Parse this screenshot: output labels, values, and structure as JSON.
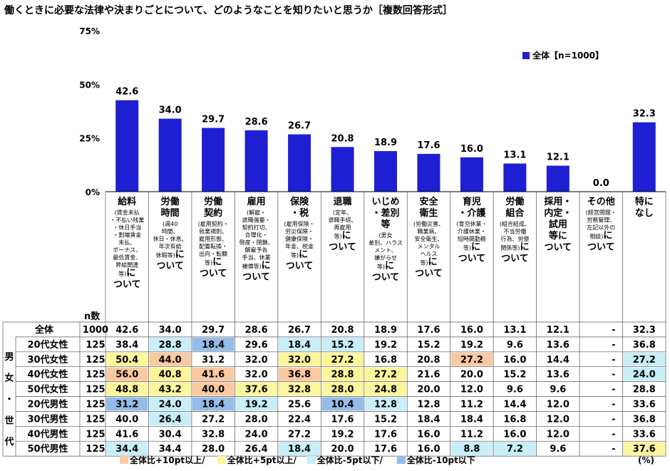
{
  "title": "働くときに必要な法律や決まりごとについて、どのようなことを知りたいと思うか［複数回答形式］",
  "colors": {
    "bar": "#1e1ed2",
    "highPlus10": "#f9c9a1",
    "highPlus5": "#fbf59c",
    "lowMinus5": "#c8eef8",
    "lowMinus10": "#93bce8"
  },
  "chart_data": {
    "type": "bar",
    "ylim": [
      0,
      75
    ],
    "yticks": [
      "0%",
      "25%",
      "50%",
      "75%"
    ],
    "legend": "全体【n=1000】",
    "legend_position": "top-right",
    "series": [
      {
        "name": "全体【n=1000】",
        "values": [
          42.6,
          34.0,
          29.7,
          28.6,
          26.7,
          20.8,
          18.9,
          17.6,
          16.0,
          13.1,
          12.1,
          0.0,
          32.3
        ]
      }
    ],
    "value_labels": [
      "42.6",
      "34.0",
      "29.7",
      "28.6",
      "26.7",
      "20.8",
      "18.9",
      "17.6",
      "16.0",
      "13.1",
      "12.1",
      "0.0",
      "32.3"
    ],
    "categories": [
      {
        "lines": [
          [
            "給料"
          ],
          [
            "(賃金未払",
            "small"
          ],
          [
            "・不払い残業",
            "small"
          ],
          [
            "・休日手当",
            "small"
          ],
          [
            "・割増賃金",
            "small"
          ],
          [
            "未払、",
            "small"
          ],
          [
            "ボーナス、",
            "small"
          ],
          [
            "最低賃金、",
            "small"
          ],
          [
            "昇給関連",
            "small"
          ],
          [
            "等)に",
            "mixed"
          ],
          [
            "ついて"
          ]
        ]
      },
      {
        "lines": [
          [
            "労働"
          ],
          [
            "時間"
          ],
          [
            "(週40",
            "small"
          ],
          [
            "時間、",
            "small"
          ],
          [
            "休日・休息、",
            "small"
          ],
          [
            "年次有給",
            "small"
          ],
          [
            "休暇等)に",
            "mixed"
          ],
          [
            "ついて"
          ]
        ]
      },
      {
        "lines": [
          [
            "労働"
          ],
          [
            "契約"
          ],
          [
            "(雇用契約・",
            "small"
          ],
          [
            "就業規則、",
            "small"
          ],
          [
            "雇用形態、",
            "small"
          ],
          [
            "配置転換・",
            "small"
          ],
          [
            "出向・転籍",
            "small"
          ],
          [
            "等)に",
            "mixed"
          ],
          [
            "ついて"
          ]
        ]
      },
      {
        "lines": [
          [
            "雇用"
          ],
          [
            "(解雇・",
            "small"
          ],
          [
            "退職強要・",
            "small"
          ],
          [
            "契約打切、",
            "small"
          ],
          [
            "合理化・",
            "small"
          ],
          [
            "倒産・閉鎖、",
            "small"
          ],
          [
            "解雇予告",
            "small"
          ],
          [
            "手当、休業",
            "small"
          ],
          [
            "補償等)に",
            "mixed"
          ],
          [
            "ついて"
          ]
        ]
      },
      {
        "lines": [
          [
            "保険"
          ],
          [
            "・税"
          ],
          [
            "(雇用保険・",
            "small"
          ],
          [
            "労災保険・",
            "small"
          ],
          [
            "健康保険・",
            "small"
          ],
          [
            "年金、税金",
            "small"
          ],
          [
            "等)に",
            "mixed"
          ],
          [
            "ついて"
          ]
        ]
      },
      {
        "lines": [
          [
            "退職"
          ],
          [
            "(定年、",
            "small"
          ],
          [
            "退職手続、",
            "small"
          ],
          [
            "再雇用",
            "small"
          ],
          [
            "等)に",
            "mixed"
          ],
          [
            "ついて"
          ]
        ]
      },
      {
        "lines": [
          [
            "いじめ"
          ],
          [
            "・差別"
          ],
          [
            "等"
          ],
          [
            "(男女",
            "small"
          ],
          [
            "差別、ハラス",
            "small"
          ],
          [
            "メント、",
            "small"
          ],
          [
            "嫌がらせ",
            "small"
          ],
          [
            "等)に",
            "mixed"
          ],
          [
            "ついて"
          ]
        ]
      },
      {
        "lines": [
          [
            "安全"
          ],
          [
            "衛生"
          ],
          [
            "(労働災害、",
            "small"
          ],
          [
            "職業病、",
            "small"
          ],
          [
            "安全衛生、",
            "small"
          ],
          [
            "メンタル",
            "small"
          ],
          [
            "ヘルス",
            "small"
          ],
          [
            "等)に",
            "mixed"
          ],
          [
            "ついて"
          ]
        ]
      },
      {
        "lines": [
          [
            "育児"
          ],
          [
            "・介護"
          ],
          [
            "(育児休業・",
            "small"
          ],
          [
            "介護休業・",
            "small"
          ],
          [
            "短時間勤務",
            "small"
          ],
          [
            "等)に",
            "mixed"
          ],
          [
            "ついて"
          ]
        ]
      },
      {
        "lines": [
          [
            "労働"
          ],
          [
            "組合"
          ],
          [
            "(組合結成、",
            "small"
          ],
          [
            "不当労働",
            "small"
          ],
          [
            "行為、労使",
            "small"
          ],
          [
            "関係等)に",
            "mixed"
          ],
          [
            "ついて"
          ]
        ]
      },
      {
        "lines": [
          [
            "採用・"
          ],
          [
            "内定・"
          ],
          [
            "試用"
          ],
          [
            "等に"
          ],
          [
            "ついて"
          ]
        ]
      },
      {
        "lines": [
          [
            "その他"
          ],
          [
            "(経営問題・",
            "small"
          ],
          [
            "労務管理、",
            "small"
          ],
          [
            "左記以外の",
            "small"
          ],
          [
            "相談)に",
            "mixed"
          ],
          [
            "ついて"
          ]
        ]
      },
      {
        "lines": [
          [
            "特に"
          ],
          [
            "なし"
          ]
        ]
      }
    ]
  },
  "table": {
    "n_header": "n数",
    "group_label": "男女・世代",
    "rows": [
      {
        "label": "全体",
        "n": "1000",
        "values": [
          "42.6",
          "34.0",
          "29.7",
          "28.6",
          "26.7",
          "20.8",
          "18.9",
          "17.6",
          "16.0",
          "13.1",
          "12.1",
          "-",
          "32.3"
        ],
        "colors": [
          "",
          "",
          "",
          "",
          "",
          "",
          "",
          "",
          "",
          "",
          "",
          "",
          ""
        ]
      },
      {
        "label": "20代女性",
        "n": "125",
        "values": [
          "38.4",
          "28.8",
          "18.4",
          "29.6",
          "18.4",
          "15.2",
          "19.2",
          "15.2",
          "19.2",
          "9.6",
          "13.6",
          "-",
          "36.8"
        ],
        "colors": [
          "",
          "lowMinus5",
          "lowMinus10",
          "",
          "lowMinus5",
          "lowMinus5",
          "",
          "",
          "",
          "",
          "",
          "",
          ""
        ]
      },
      {
        "label": "30代女性",
        "n": "125",
        "values": [
          "50.4",
          "44.0",
          "31.2",
          "32.0",
          "32.0",
          "27.2",
          "16.8",
          "20.8",
          "27.2",
          "16.0",
          "14.4",
          "-",
          "27.2"
        ],
        "colors": [
          "highPlus5",
          "highPlus10",
          "",
          "",
          "highPlus5",
          "highPlus5",
          "",
          "",
          "highPlus10",
          "",
          "",
          "",
          "lowMinus5"
        ]
      },
      {
        "label": "40代女性",
        "n": "125",
        "values": [
          "56.0",
          "40.8",
          "41.6",
          "32.0",
          "36.8",
          "28.8",
          "27.2",
          "21.6",
          "20.0",
          "15.2",
          "13.6",
          "-",
          "24.0"
        ],
        "colors": [
          "highPlus10",
          "highPlus5",
          "highPlus10",
          "",
          "highPlus10",
          "highPlus5",
          "highPlus5",
          "",
          "",
          "",
          "",
          "",
          "lowMinus5"
        ]
      },
      {
        "label": "50代女性",
        "n": "125",
        "values": [
          "48.8",
          "43.2",
          "40.0",
          "37.6",
          "32.8",
          "28.0",
          "24.8",
          "20.0",
          "12.0",
          "9.6",
          "9.6",
          "-",
          "28.8"
        ],
        "colors": [
          "highPlus5",
          "highPlus5",
          "highPlus10",
          "highPlus5",
          "highPlus5",
          "highPlus5",
          "highPlus5",
          "",
          "",
          "",
          "",
          "",
          ""
        ]
      },
      {
        "label": "20代男性",
        "n": "125",
        "values": [
          "31.2",
          "24.0",
          "18.4",
          "19.2",
          "25.6",
          "10.4",
          "12.8",
          "12.8",
          "11.2",
          "14.4",
          "12.0",
          "-",
          "33.6"
        ],
        "colors": [
          "lowMinus10",
          "lowMinus5",
          "lowMinus10",
          "lowMinus5",
          "",
          "lowMinus10",
          "lowMinus5",
          "",
          "",
          "",
          "",
          "",
          ""
        ]
      },
      {
        "label": "30代男性",
        "n": "125",
        "values": [
          "40.0",
          "26.4",
          "27.2",
          "28.0",
          "22.4",
          "17.6",
          "15.2",
          "18.4",
          "18.4",
          "16.8",
          "12.0",
          "-",
          "36.8"
        ],
        "colors": [
          "",
          "lowMinus5",
          "",
          "",
          "",
          "",
          "",
          "",
          "",
          "",
          "",
          "",
          ""
        ]
      },
      {
        "label": "40代男性",
        "n": "125",
        "values": [
          "41.6",
          "30.4",
          "32.8",
          "24.0",
          "27.2",
          "19.2",
          "17.6",
          "16.0",
          "11.2",
          "16.0",
          "12.0",
          "-",
          "33.6"
        ],
        "colors": [
          "",
          "",
          "",
          "",
          "",
          "",
          "",
          "",
          "",
          "",
          "",
          "",
          ""
        ]
      },
      {
        "label": "50代男性",
        "n": "125",
        "values": [
          "34.4",
          "34.4",
          "28.0",
          "26.4",
          "18.4",
          "20.0",
          "17.6",
          "16.0",
          "8.8",
          "7.2",
          "9.6",
          "-",
          "37.6"
        ],
        "colors": [
          "lowMinus5",
          "",
          "",
          "",
          "lowMinus5",
          "",
          "",
          "",
          "lowMinus5",
          "lowMinus5",
          "",
          "",
          "highPlus5"
        ]
      }
    ]
  },
  "footer": {
    "items": [
      {
        "label": "全体比+10pt以上/",
        "color": "highPlus10"
      },
      {
        "label": "全体比+5pt以上/",
        "color": "highPlus5"
      },
      {
        "label": "全体比-5pt以下/",
        "color": "lowMinus5"
      },
      {
        "label": "全体比-10pt以下",
        "color": "lowMinus10"
      }
    ],
    "unit": "(%)"
  }
}
